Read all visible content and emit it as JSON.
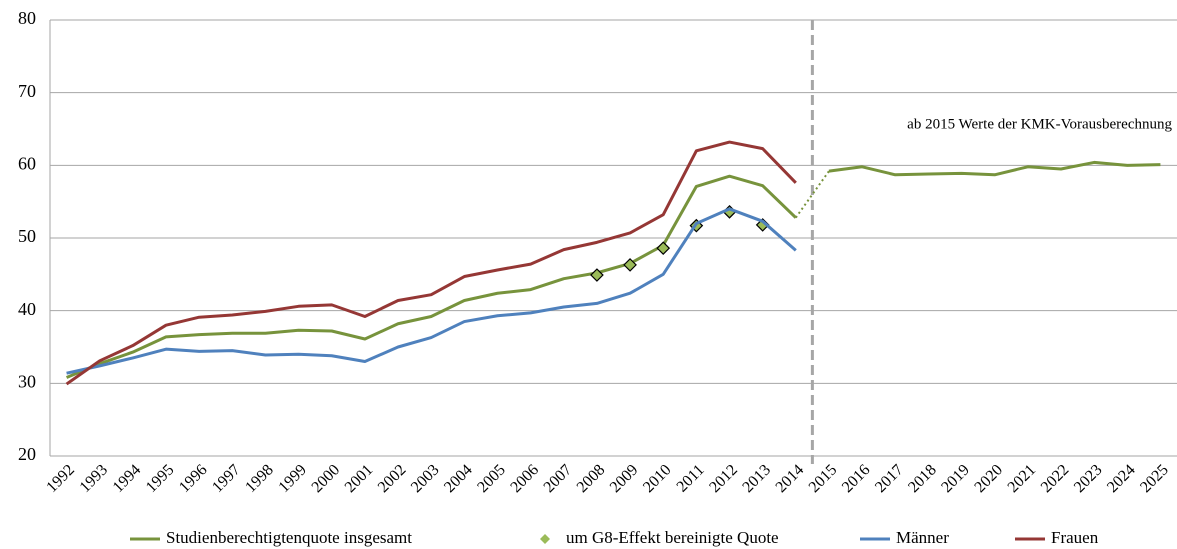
{
  "chart_data": {
    "type": "line",
    "categories": [
      "1992",
      "1993",
      "1994",
      "1995",
      "1996",
      "1997",
      "1998",
      "1999",
      "2000",
      "2001",
      "2002",
      "2003",
      "2004",
      "2005",
      "2006",
      "2007",
      "2008",
      "2009",
      "2010",
      "2011",
      "2012",
      "2013",
      "2014",
      "2015",
      "2016",
      "2017",
      "2018",
      "2019",
      "2020",
      "2021",
      "2022",
      "2023",
      "2024",
      "2025"
    ],
    "series": [
      {
        "name": "Studienberechtigtenquote insgesamt",
        "color": "#77933c",
        "marker": "none",
        "values": [
          30.8,
          32.7,
          34.3,
          36.4,
          36.7,
          36.9,
          36.9,
          37.3,
          37.2,
          36.1,
          38.2,
          39.2,
          41.4,
          42.4,
          42.9,
          44.4,
          45.2,
          46.5,
          49.0,
          57.1,
          58.5,
          57.2,
          52.8,
          59.2,
          59.8,
          58.7,
          58.8,
          58.9,
          58.7,
          59.8,
          59.5,
          60.4,
          60.0,
          60.1
        ]
      },
      {
        "name": "um G8-Effekt bereinigte Quote",
        "color": "#9bbb59",
        "marker": "diamond",
        "line": false,
        "values": [
          null,
          null,
          null,
          null,
          null,
          null,
          null,
          null,
          null,
          null,
          null,
          null,
          null,
          null,
          null,
          null,
          44.9,
          46.3,
          48.6,
          51.7,
          53.6,
          51.8,
          null,
          null,
          null,
          null,
          null,
          null,
          null,
          null,
          null,
          null,
          null,
          null
        ]
      },
      {
        "name": "Männer",
        "color": "#4f81bd",
        "marker": "none",
        "values": [
          31.4,
          32.4,
          33.5,
          34.7,
          34.4,
          34.5,
          33.9,
          34.0,
          33.8,
          33.0,
          35.0,
          36.3,
          38.5,
          39.3,
          39.7,
          40.5,
          41.0,
          42.4,
          45.0,
          52.0,
          54.0,
          52.3,
          48.3,
          null,
          null,
          null,
          null,
          null,
          null,
          null,
          null,
          null,
          null,
          null
        ]
      },
      {
        "name": "Frauen",
        "color": "#953735",
        "marker": "none",
        "values": [
          29.9,
          33.1,
          35.2,
          38.0,
          39.1,
          39.4,
          39.9,
          40.6,
          40.8,
          39.2,
          41.4,
          42.2,
          44.7,
          45.6,
          46.4,
          48.4,
          49.4,
          50.7,
          53.2,
          62.0,
          63.2,
          62.3,
          57.6,
          null,
          null,
          null,
          null,
          null,
          null,
          null,
          null,
          null,
          null,
          null
        ]
      }
    ],
    "ylim": [
      20,
      80
    ],
    "yticks": [
      20,
      30,
      40,
      50,
      60,
      70,
      80
    ],
    "grid": true,
    "divider_after": "2014",
    "annotation": "ab 2015 Werte der KMK-Vorausberechnung",
    "legend": "bottom"
  }
}
